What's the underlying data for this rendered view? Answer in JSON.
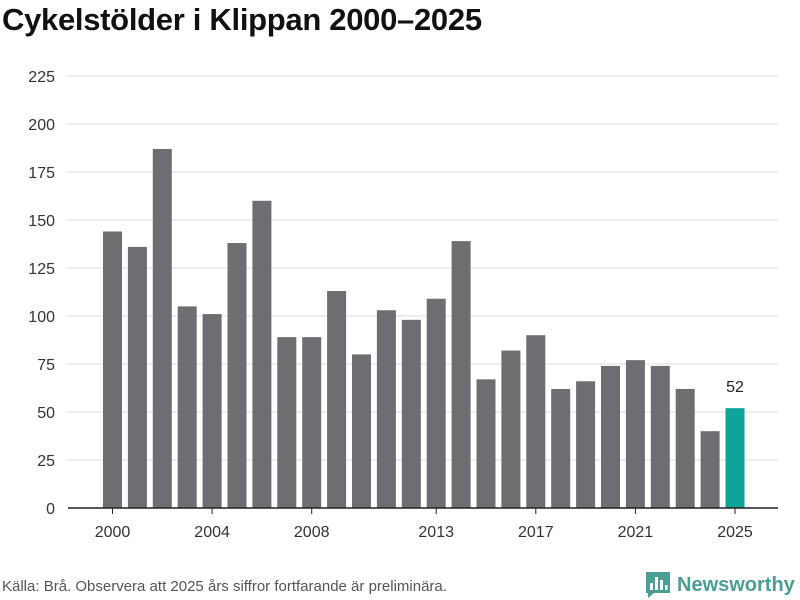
{
  "chart_data": {
    "type": "bar",
    "title": "Cykelstölder i Klippan 2000–2025",
    "xlabel": "",
    "ylabel": "",
    "categories": [
      "2000",
      "2001",
      "2002",
      "2003",
      "2004",
      "2005",
      "2006",
      "2007",
      "2008",
      "2009",
      "2010",
      "2011",
      "2012",
      "2013",
      "2014",
      "2015",
      "2016",
      "2017",
      "2018",
      "2019",
      "2020",
      "2021",
      "2022",
      "2023",
      "2024",
      "2025"
    ],
    "values": [
      144,
      136,
      187,
      105,
      101,
      138,
      160,
      89,
      89,
      113,
      80,
      103,
      98,
      109,
      139,
      67,
      82,
      90,
      62,
      66,
      74,
      77,
      74,
      62,
      40,
      52
    ],
    "x_tick_labels": [
      "2000",
      "2004",
      "2008",
      "2013",
      "2017",
      "2021",
      "2025"
    ],
    "y_ticks": [
      0,
      25,
      50,
      75,
      100,
      125,
      150,
      175,
      200,
      225
    ],
    "ylim": [
      0,
      225
    ],
    "grid": true,
    "highlight": {
      "category": "2025",
      "label": "52"
    },
    "colors": {
      "bar": "#6e6d72",
      "highlight": "#0fa499",
      "grid": "#dddddd",
      "axis": "#222222"
    }
  },
  "footer": {
    "source": "Källa: Brå. Observera att 2025 års siffror fortfarande är preliminära.",
    "brand": "Newsworthy",
    "brand_icon": "newsworthy-logo-icon"
  }
}
